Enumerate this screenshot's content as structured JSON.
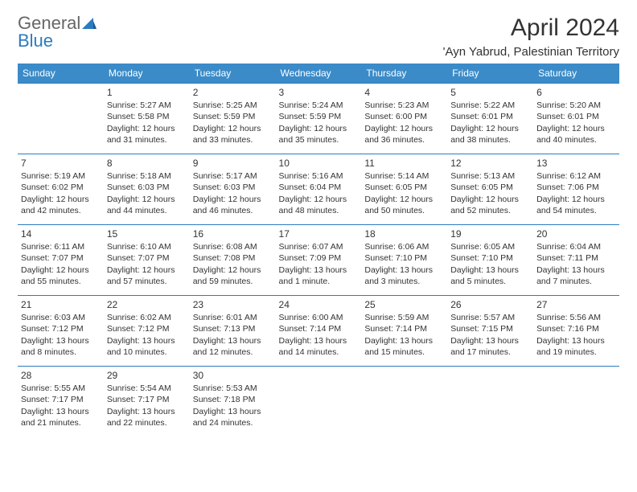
{
  "logo": {
    "word1": "General",
    "word2": "Blue"
  },
  "title": "April 2024",
  "location": "'Ayn Yabrud, Palestinian Territory",
  "colors": {
    "header_bg": "#3b8bc8",
    "border": "#2b7bbf",
    "text": "#333333",
    "logo_blue": "#2b7bbf",
    "logo_gray": "#666666",
    "background": "#ffffff"
  },
  "day_headers": [
    "Sunday",
    "Monday",
    "Tuesday",
    "Wednesday",
    "Thursday",
    "Friday",
    "Saturday"
  ],
  "weeks": [
    [
      null,
      {
        "n": "1",
        "sr": "5:27 AM",
        "ss": "5:58 PM",
        "dl": "12 hours and 31 minutes."
      },
      {
        "n": "2",
        "sr": "5:25 AM",
        "ss": "5:59 PM",
        "dl": "12 hours and 33 minutes."
      },
      {
        "n": "3",
        "sr": "5:24 AM",
        "ss": "5:59 PM",
        "dl": "12 hours and 35 minutes."
      },
      {
        "n": "4",
        "sr": "5:23 AM",
        "ss": "6:00 PM",
        "dl": "12 hours and 36 minutes."
      },
      {
        "n": "5",
        "sr": "5:22 AM",
        "ss": "6:01 PM",
        "dl": "12 hours and 38 minutes."
      },
      {
        "n": "6",
        "sr": "5:20 AM",
        "ss": "6:01 PM",
        "dl": "12 hours and 40 minutes."
      }
    ],
    [
      {
        "n": "7",
        "sr": "5:19 AM",
        "ss": "6:02 PM",
        "dl": "12 hours and 42 minutes."
      },
      {
        "n": "8",
        "sr": "5:18 AM",
        "ss": "6:03 PM",
        "dl": "12 hours and 44 minutes."
      },
      {
        "n": "9",
        "sr": "5:17 AM",
        "ss": "6:03 PM",
        "dl": "12 hours and 46 minutes."
      },
      {
        "n": "10",
        "sr": "5:16 AM",
        "ss": "6:04 PM",
        "dl": "12 hours and 48 minutes."
      },
      {
        "n": "11",
        "sr": "5:14 AM",
        "ss": "6:05 PM",
        "dl": "12 hours and 50 minutes."
      },
      {
        "n": "12",
        "sr": "5:13 AM",
        "ss": "6:05 PM",
        "dl": "12 hours and 52 minutes."
      },
      {
        "n": "13",
        "sr": "6:12 AM",
        "ss": "7:06 PM",
        "dl": "12 hours and 54 minutes."
      }
    ],
    [
      {
        "n": "14",
        "sr": "6:11 AM",
        "ss": "7:07 PM",
        "dl": "12 hours and 55 minutes."
      },
      {
        "n": "15",
        "sr": "6:10 AM",
        "ss": "7:07 PM",
        "dl": "12 hours and 57 minutes."
      },
      {
        "n": "16",
        "sr": "6:08 AM",
        "ss": "7:08 PM",
        "dl": "12 hours and 59 minutes."
      },
      {
        "n": "17",
        "sr": "6:07 AM",
        "ss": "7:09 PM",
        "dl": "13 hours and 1 minute."
      },
      {
        "n": "18",
        "sr": "6:06 AM",
        "ss": "7:10 PM",
        "dl": "13 hours and 3 minutes."
      },
      {
        "n": "19",
        "sr": "6:05 AM",
        "ss": "7:10 PM",
        "dl": "13 hours and 5 minutes."
      },
      {
        "n": "20",
        "sr": "6:04 AM",
        "ss": "7:11 PM",
        "dl": "13 hours and 7 minutes."
      }
    ],
    [
      {
        "n": "21",
        "sr": "6:03 AM",
        "ss": "7:12 PM",
        "dl": "13 hours and 8 minutes."
      },
      {
        "n": "22",
        "sr": "6:02 AM",
        "ss": "7:12 PM",
        "dl": "13 hours and 10 minutes."
      },
      {
        "n": "23",
        "sr": "6:01 AM",
        "ss": "7:13 PM",
        "dl": "13 hours and 12 minutes."
      },
      {
        "n": "24",
        "sr": "6:00 AM",
        "ss": "7:14 PM",
        "dl": "13 hours and 14 minutes."
      },
      {
        "n": "25",
        "sr": "5:59 AM",
        "ss": "7:14 PM",
        "dl": "13 hours and 15 minutes."
      },
      {
        "n": "26",
        "sr": "5:57 AM",
        "ss": "7:15 PM",
        "dl": "13 hours and 17 minutes."
      },
      {
        "n": "27",
        "sr": "5:56 AM",
        "ss": "7:16 PM",
        "dl": "13 hours and 19 minutes."
      }
    ],
    [
      {
        "n": "28",
        "sr": "5:55 AM",
        "ss": "7:17 PM",
        "dl": "13 hours and 21 minutes."
      },
      {
        "n": "29",
        "sr": "5:54 AM",
        "ss": "7:17 PM",
        "dl": "13 hours and 22 minutes."
      },
      {
        "n": "30",
        "sr": "5:53 AM",
        "ss": "7:18 PM",
        "dl": "13 hours and 24 minutes."
      },
      null,
      null,
      null,
      null
    ]
  ],
  "labels": {
    "sunrise": "Sunrise:",
    "sunset": "Sunset:",
    "daylight": "Daylight:"
  }
}
